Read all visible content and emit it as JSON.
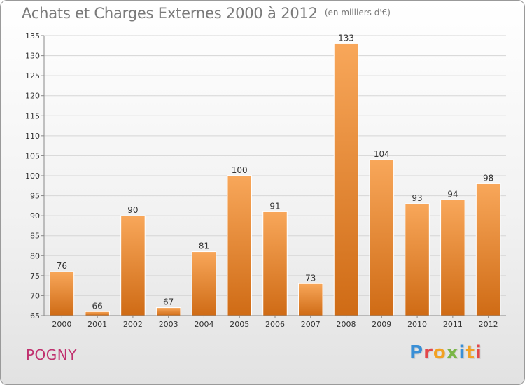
{
  "title": "Achats et Charges Externes 2000 à 2012",
  "title_unit": "(en milliers d'€)",
  "city": "POGNY",
  "logo": {
    "letters": [
      "P",
      "r",
      "o",
      "x",
      "i",
      "t",
      "i"
    ],
    "colors": [
      "#3a8fd6",
      "#e2474a",
      "#f2a122",
      "#7ab648",
      "#3a8fd6",
      "#f2a122",
      "#e2474a"
    ]
  },
  "colors": {
    "bar_top": "#f8a75a",
    "bar_bottom": "#cf6b15",
    "city": "#c0306e",
    "title": "#7a7a7a"
  },
  "chart_data": {
    "type": "bar",
    "categories": [
      "2000",
      "2001",
      "2002",
      "2003",
      "2004",
      "2005",
      "2006",
      "2007",
      "2008",
      "2009",
      "2010",
      "2011",
      "2012"
    ],
    "values": [
      76,
      66,
      90,
      67,
      81,
      100,
      91,
      73,
      133,
      104,
      93,
      94,
      98
    ],
    "data_labels": [
      "76",
      "66",
      "90",
      "67",
      "81",
      "100",
      "91",
      "73",
      "133",
      "104",
      "93",
      "94",
      "98"
    ],
    "yticks": [
      "65",
      "70",
      "75",
      "80",
      "85",
      "90",
      "95",
      "100",
      "105",
      "110",
      "115",
      "120",
      "125",
      "130",
      "135"
    ],
    "ylim": [
      65,
      135
    ],
    "grid": "horizontal",
    "legend": "none"
  }
}
